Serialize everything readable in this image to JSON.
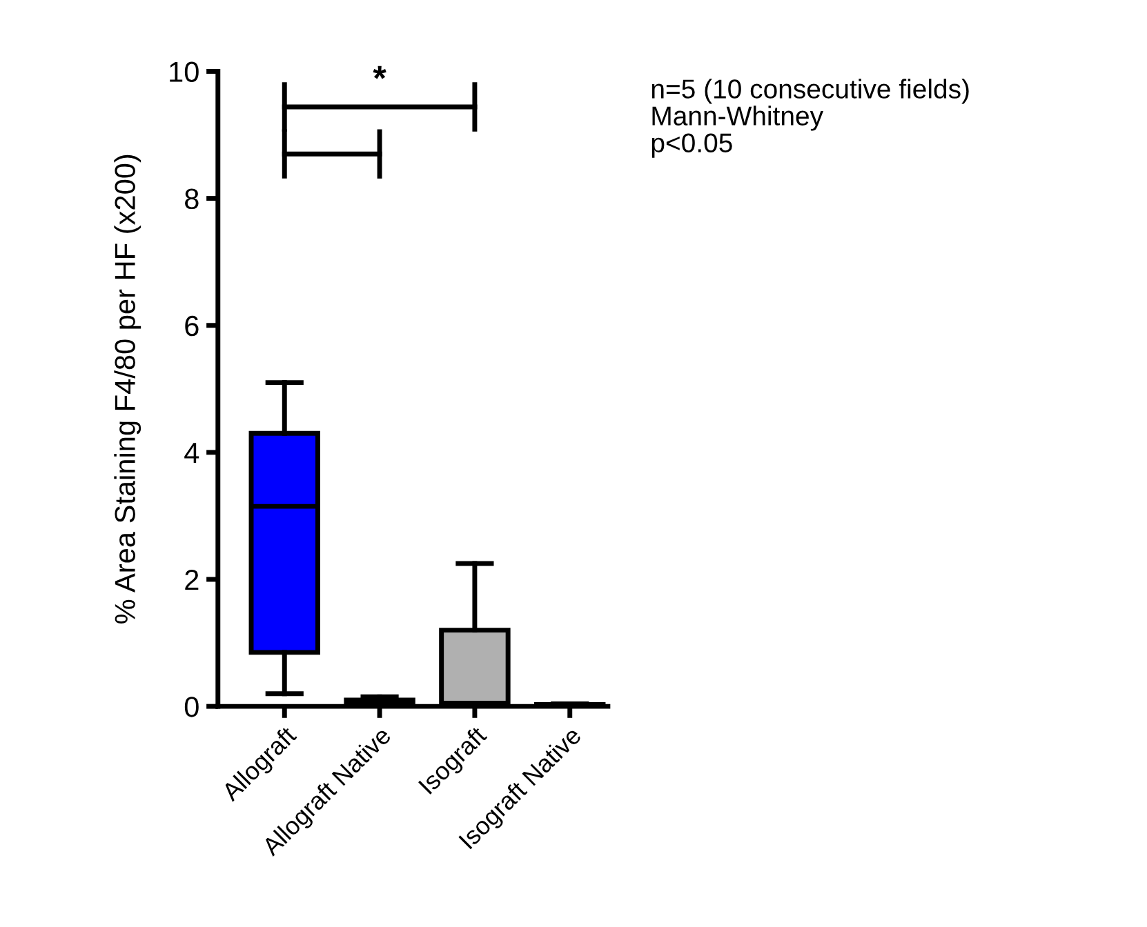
{
  "chart_data": {
    "type": "box",
    "ylabel": "% Area Staining F4/80 per HF (x200)",
    "categories": [
      "Allograft",
      "Allograft Native",
      "Isograft",
      "Isograft Native"
    ],
    "colors": [
      "#0000ff",
      "#222222",
      "#b0b0b0",
      "#222222"
    ],
    "boxes": [
      {
        "low": 0.2,
        "q1": 0.85,
        "median": 3.15,
        "q3": 4.3,
        "high": 5.1
      },
      {
        "low": 0,
        "q1": 0.02,
        "median": 0.05,
        "q3": 0.1,
        "high": 0.15
      },
      {
        "low": 0,
        "q1": 0.05,
        "median": 0.05,
        "q3": 1.2,
        "high": 2.25
      },
      {
        "low": 0,
        "q1": 0.01,
        "median": 0.02,
        "q3": 0.03,
        "high": 0.04
      }
    ],
    "ylim": [
      0,
      10
    ],
    "yticks": [
      0,
      2,
      4,
      6,
      8,
      10
    ],
    "annotations": [
      "*",
      "n=5 (10 consecutive fields)\nMann-Whitney\np<0.05"
    ]
  }
}
